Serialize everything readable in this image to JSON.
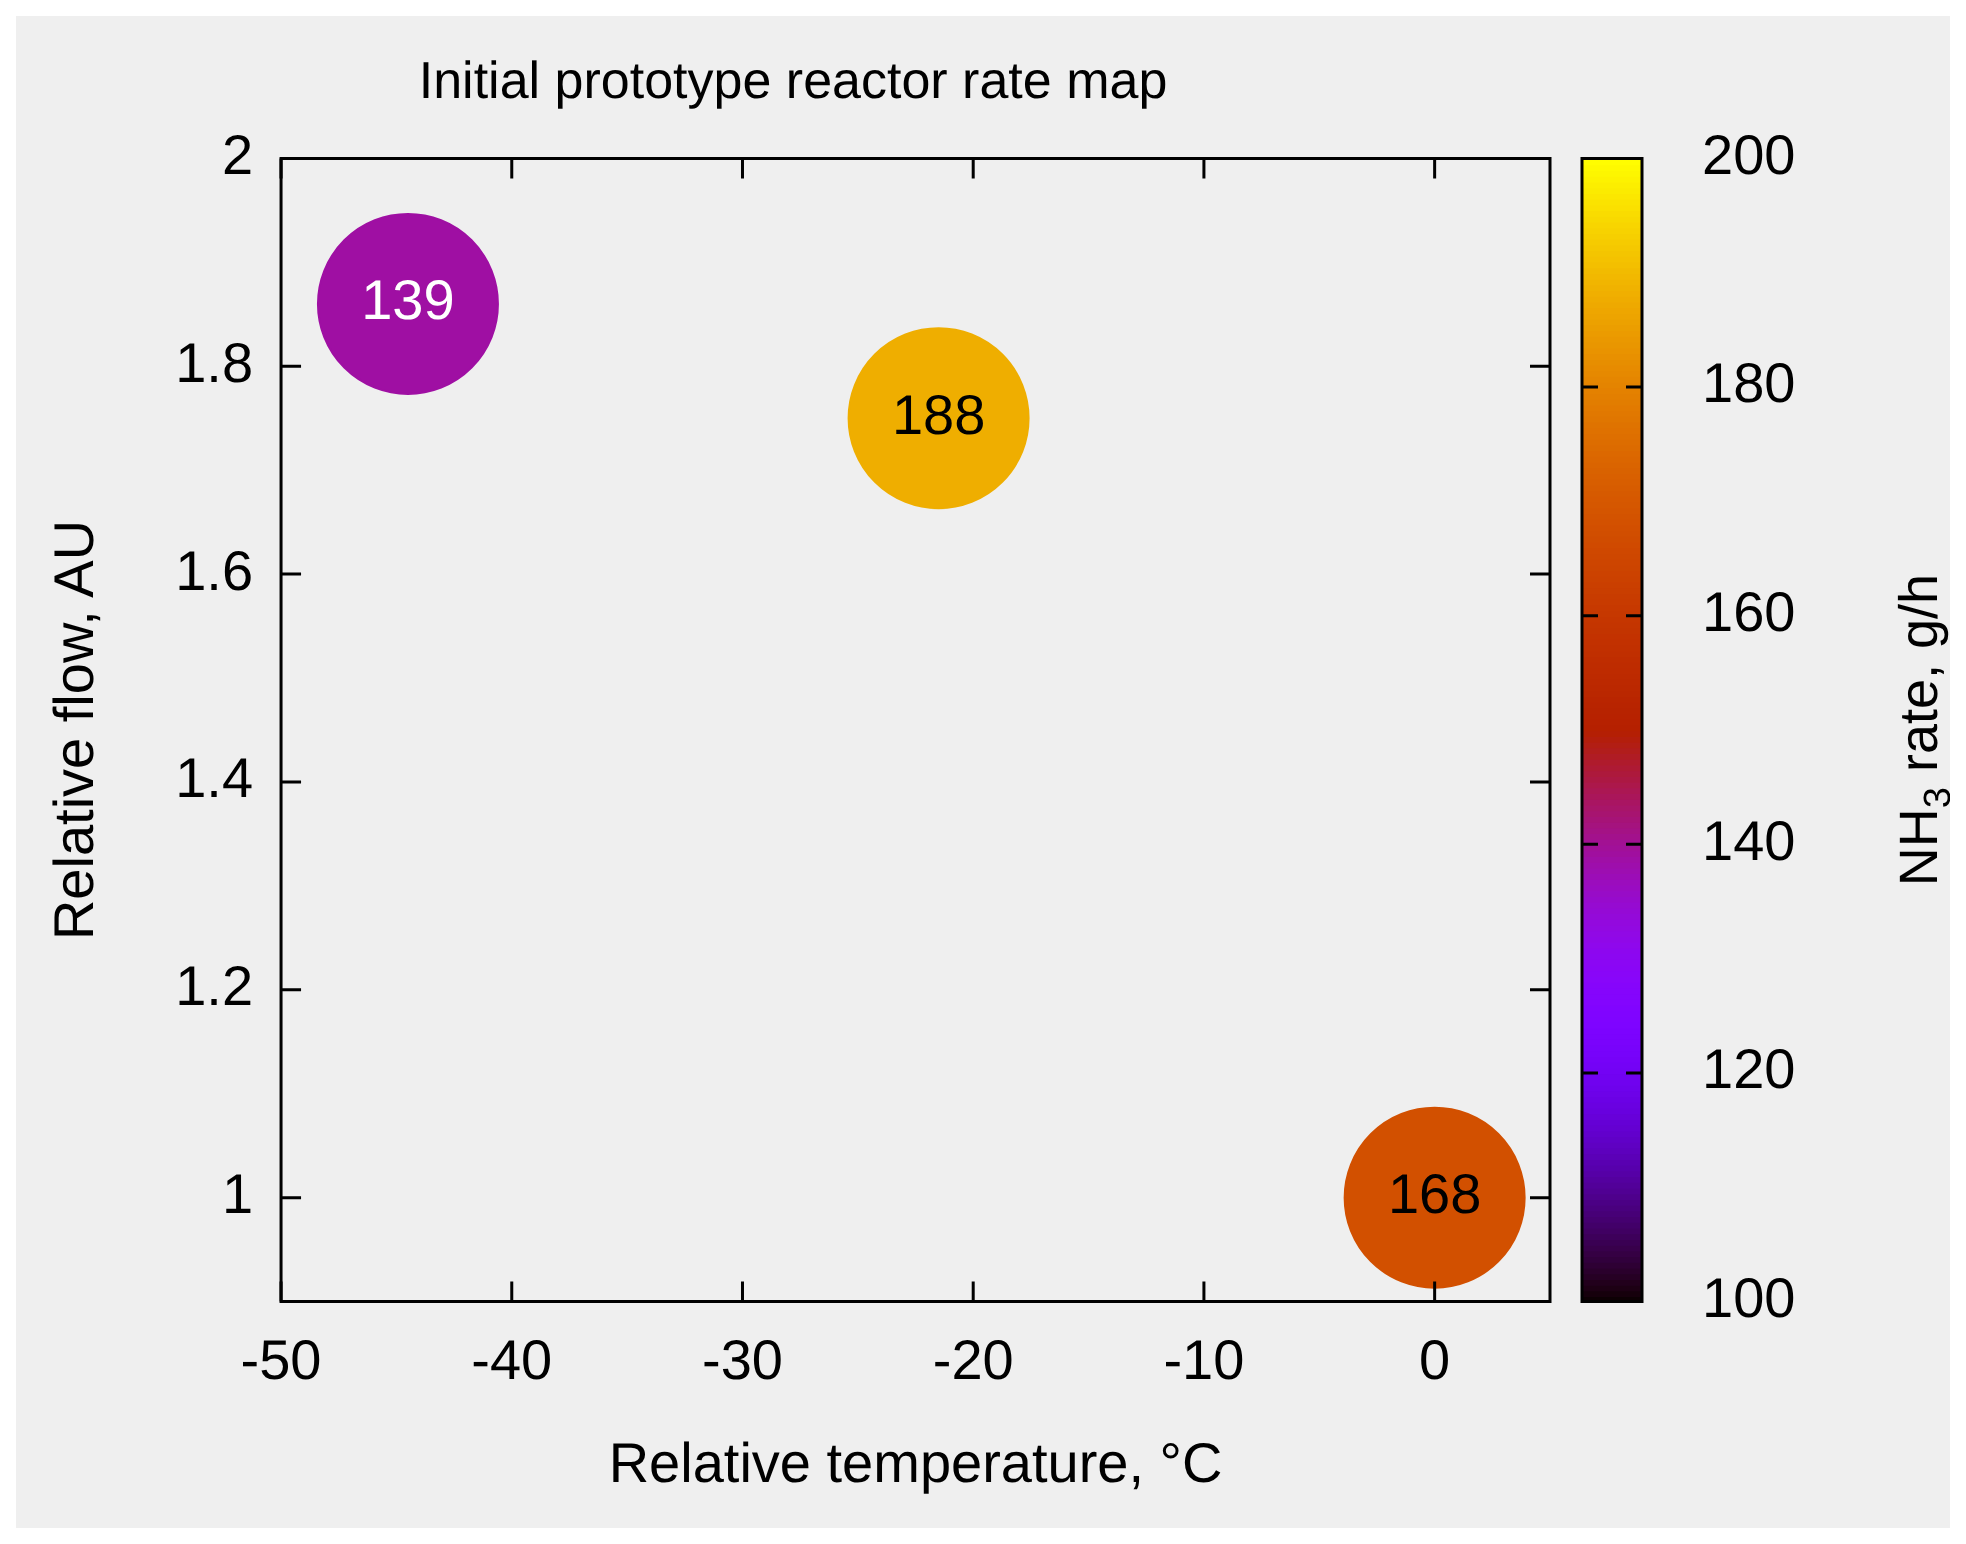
{
  "chart_data": {
    "type": "scatter",
    "title": "Initial prototype reactor rate map",
    "xlabel": "Relative temperature, °C",
    "ylabel": "Relative flow, AU",
    "clabel": "NH$_{3}$ rate, g/h",
    "x": [
      -44.5,
      -21.5,
      0
    ],
    "values": [
      1.86,
      1.75,
      1
    ],
    "cvalues": [
      139,
      188,
      168
    ],
    "annotations": [
      {
        "text": "139",
        "x": -44.5,
        "y": 1.86
      },
      {
        "text": "188",
        "x": -21.5,
        "y": 1.75
      },
      {
        "text": "168",
        "x": 0,
        "y": 1
      }
    ],
    "xlim": [
      -50,
      5
    ],
    "xticks": [
      -50,
      -40,
      -30,
      -20,
      -10,
      0
    ],
    "ylim": [
      0.9,
      2
    ],
    "yticks": [
      1,
      1.2,
      1.4,
      1.6,
      1.8,
      2
    ],
    "clim": [
      100,
      200
    ],
    "cticks": [
      100,
      120,
      140,
      160,
      180,
      200
    ],
    "marker": "circle",
    "grid": false,
    "legend": false
  }
}
